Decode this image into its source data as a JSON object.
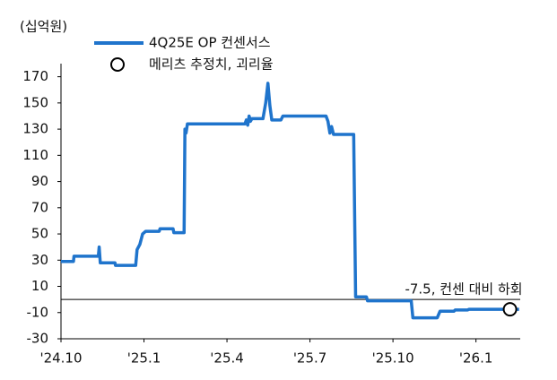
{
  "chart_data": {
    "type": "line",
    "y_label": "(십억원)",
    "xlim": [
      0,
      16.6
    ],
    "xticks": [
      {
        "value": 0,
        "label": "'24.10"
      },
      {
        "value": 3,
        "label": "'25.1"
      },
      {
        "value": 6,
        "label": "'25.4"
      },
      {
        "value": 9,
        "label": "'25.7"
      },
      {
        "value": 12,
        "label": "'25.10"
      },
      {
        "value": 15,
        "label": "'26.1"
      }
    ],
    "ylim": [
      -30,
      180
    ],
    "yticks": [
      -30,
      -10,
      10,
      30,
      50,
      70,
      90,
      110,
      130,
      150,
      170
    ],
    "series": [
      {
        "name": "4Q25E OP 컨센서스",
        "color": "#1f74cc",
        "style": "line",
        "x": [
          0,
          0.45,
          0.47,
          1.35,
          1.38,
          1.42,
          1.95,
          1.97,
          2.7,
          2.75,
          2.85,
          2.95,
          3.06,
          3.55,
          3.58,
          4.05,
          4.08,
          4.45,
          4.48,
          4.52,
          4.57,
          6.65,
          6.7,
          6.75,
          6.8,
          6.85,
          6.9,
          7.3,
          7.4,
          7.48,
          7.55,
          7.62,
          7.95,
          8.02,
          9.58,
          9.65,
          9.72,
          9.78,
          9.85,
          10.58,
          10.65,
          11.04,
          11.08,
          12.66,
          12.72,
          13.6,
          13.7,
          14.2,
          14.25,
          14.7,
          14.75,
          16.56
        ],
        "values": [
          29,
          29,
          33,
          33,
          40,
          28,
          28,
          26,
          26,
          38,
          42,
          50,
          52,
          52,
          54,
          54,
          51,
          51,
          130,
          127,
          134,
          134,
          137,
          133,
          140,
          136,
          138,
          138,
          150,
          165,
          148,
          137,
          137,
          140,
          140,
          136,
          127,
          132,
          126,
          126,
          2,
          2,
          -1,
          -1,
          -14,
          -14,
          -9,
          -9,
          -8,
          -8,
          -7.5,
          -7.5
        ]
      },
      {
        "name": "메리츠 추정치, 괴리율",
        "color": "#000000",
        "style": "marker",
        "x": [
          16.23
        ],
        "values": [
          -7.5
        ],
        "value_labels": [
          "-7.5, 컨센 대비 하회"
        ]
      }
    ]
  }
}
